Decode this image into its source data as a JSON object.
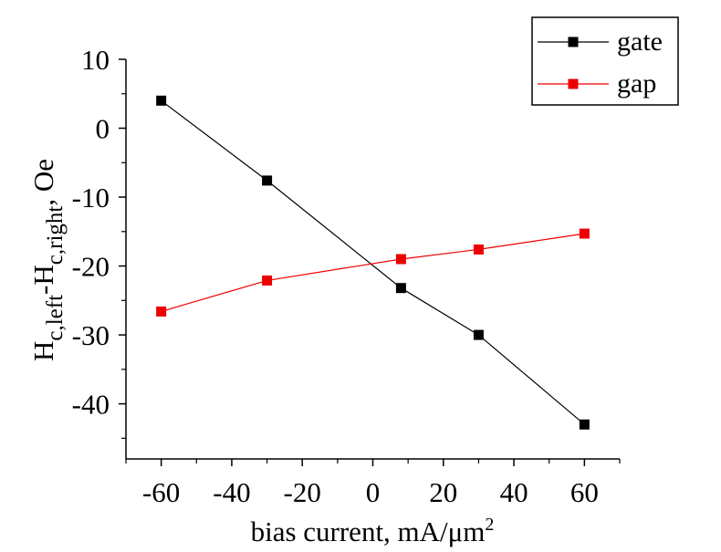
{
  "chart_data": {
    "type": "line",
    "xlabel": "bias current, mA/μm",
    "xlabel_superscript": "2",
    "ylabel_parts": {
      "h1": "H",
      "sub1": "c,left",
      "dash": "-H",
      "sub2": "c,right",
      "tail": ", Oe"
    },
    "xlim": [
      -70,
      70
    ],
    "ylim": [
      -48,
      10
    ],
    "x_ticks": [
      -60,
      -40,
      -20,
      0,
      20,
      40,
      60
    ],
    "x_tick_labels": [
      "-60",
      "-40",
      "-20",
      "0",
      "20",
      "40",
      "60"
    ],
    "y_ticks": [
      10,
      0,
      -10,
      -20,
      -30,
      -40
    ],
    "y_tick_labels": [
      "10",
      "0",
      "-10",
      "-20",
      "-30",
      "-40"
    ],
    "grid": false,
    "legend_position": "top-right",
    "series": [
      {
        "name": "gate",
        "color": "#000000",
        "marker": "square",
        "x": [
          -60,
          -30,
          8,
          30,
          60
        ],
        "y": [
          4,
          -7.6,
          -23.2,
          -30,
          -43
        ]
      },
      {
        "name": "gap",
        "color": "#ee0000",
        "marker": "square",
        "x": [
          -60,
          -30,
          8,
          30,
          60
        ],
        "y": [
          -26.6,
          -22.1,
          -19,
          -17.6,
          -15.3
        ]
      }
    ]
  }
}
